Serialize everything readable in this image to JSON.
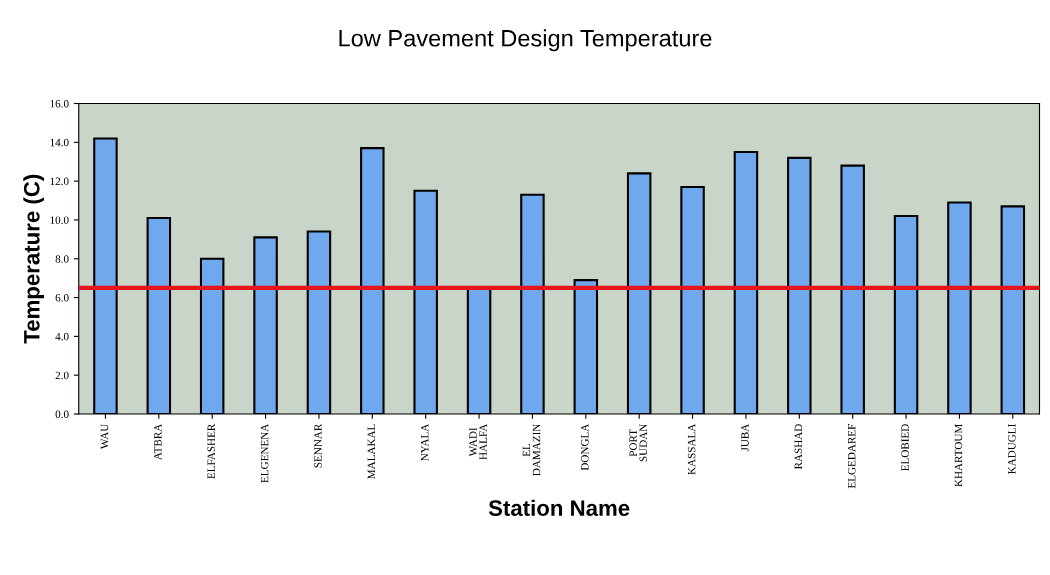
{
  "chart_data": {
    "type": "bar",
    "title": "Low Pavement Design Temperature",
    "xlabel": "Station Name",
    "ylabel": "Temperature (C)",
    "categories": [
      "WAU",
      "ATBRA",
      "ELFASHER",
      "ELGENENA",
      "SENNAR",
      "MALAKAL",
      "NYALA",
      "WADI\nHALFA",
      "EL\nDAMAZIN",
      "DONGLA",
      "PORT\nSUDAN",
      "KASSALA",
      "JUBA",
      "RASHAD",
      "ELGEDAREF",
      "ELOBIED",
      "KHARTOUM",
      "KADUGLI"
    ],
    "values": [
      14.2,
      10.1,
      8.0,
      9.1,
      9.4,
      13.7,
      11.5,
      6.5,
      11.3,
      6.9,
      12.4,
      11.7,
      13.5,
      13.2,
      12.8,
      10.2,
      10.9,
      10.7
    ],
    "color": "#6fa8ec",
    "ylim": [
      0,
      16
    ],
    "yticks": [
      {
        "value": 0,
        "label": "0.0"
      },
      {
        "value": 2,
        "label": "2.0"
      },
      {
        "value": 4,
        "label": "4.0"
      },
      {
        "value": 6,
        "label": "6.0"
      },
      {
        "value": 8,
        "label": "8.0"
      },
      {
        "value": 10,
        "label": "10.0"
      },
      {
        "value": 12,
        "label": "12.0"
      },
      {
        "value": 14,
        "label": "14.0"
      },
      {
        "value": 16,
        "label": "16.0"
      }
    ],
    "ref_lines": [
      {
        "axis": "y",
        "value": 6.5,
        "color": "#e8141c"
      }
    ],
    "grid": false,
    "legend": false
  }
}
